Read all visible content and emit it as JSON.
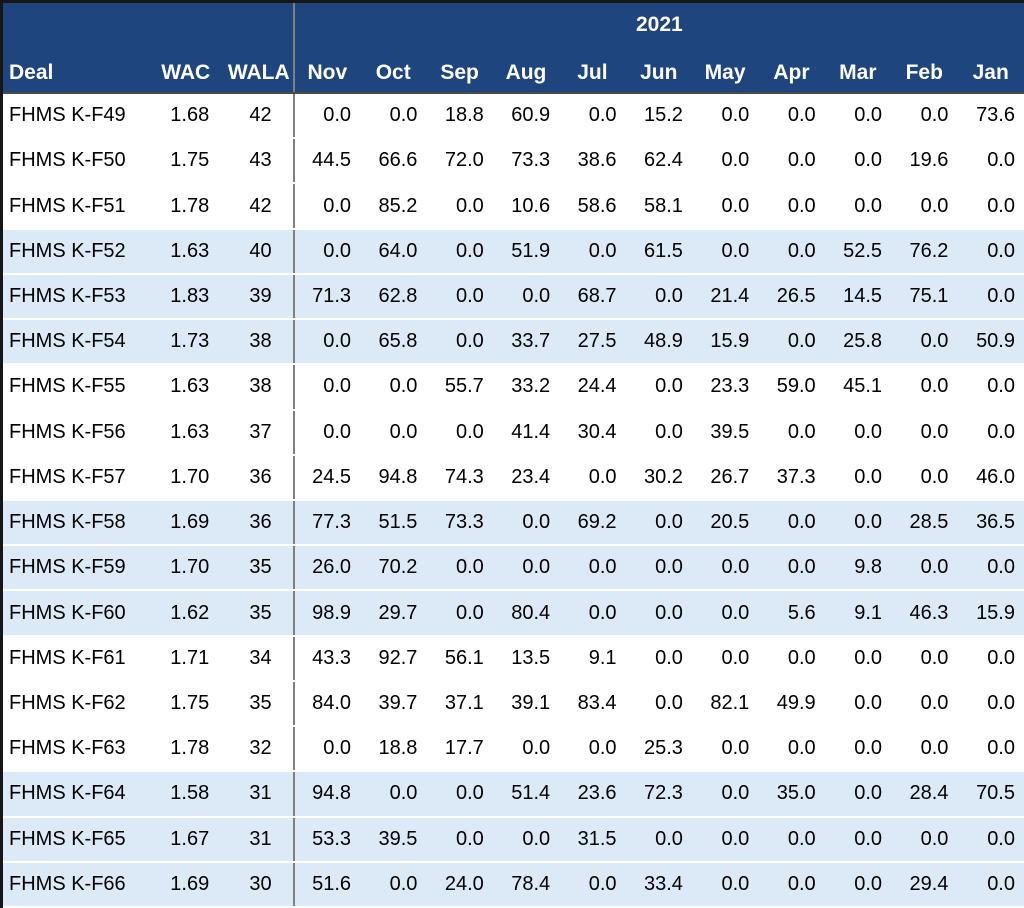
{
  "header": {
    "deal": "Deal",
    "wac": "WAC",
    "wala": "WALA",
    "year": "2021"
  },
  "chart_data": {
    "type": "table",
    "title": "2021",
    "group_header": "2021",
    "columns": [
      "Deal",
      "WAC",
      "WALA",
      "Nov",
      "Oct",
      "Sep",
      "Aug",
      "Jul",
      "Jun",
      "May",
      "Apr",
      "Mar",
      "Feb",
      "Jan"
    ],
    "months": [
      "Nov",
      "Oct",
      "Sep",
      "Aug",
      "Jul",
      "Jun",
      "May",
      "Apr",
      "Mar",
      "Feb",
      "Jan"
    ],
    "layout": {
      "banding": "rows alternate in groups of 3: white / light blue",
      "month_order": "reverse chronological Nov to Jan"
    },
    "rows": [
      {
        "deal": "FHMS K-F49",
        "wac": 1.68,
        "wala": 42,
        "monthly": [
          0.0,
          0.0,
          18.8,
          60.9,
          0.0,
          15.2,
          0.0,
          0.0,
          0.0,
          0.0,
          73.6
        ]
      },
      {
        "deal": "FHMS K-F50",
        "wac": 1.75,
        "wala": 43,
        "monthly": [
          44.5,
          66.6,
          72.0,
          73.3,
          38.6,
          62.4,
          0.0,
          0.0,
          0.0,
          19.6,
          0.0
        ]
      },
      {
        "deal": "FHMS K-F51",
        "wac": 1.78,
        "wala": 42,
        "monthly": [
          0.0,
          85.2,
          0.0,
          10.6,
          58.6,
          58.1,
          0.0,
          0.0,
          0.0,
          0.0,
          0.0
        ]
      },
      {
        "deal": "FHMS K-F52",
        "wac": 1.63,
        "wala": 40,
        "monthly": [
          0.0,
          64.0,
          0.0,
          51.9,
          0.0,
          61.5,
          0.0,
          0.0,
          52.5,
          76.2,
          0.0
        ]
      },
      {
        "deal": "FHMS K-F53",
        "wac": 1.83,
        "wala": 39,
        "monthly": [
          71.3,
          62.8,
          0.0,
          0.0,
          68.7,
          0.0,
          21.4,
          26.5,
          14.5,
          75.1,
          0.0
        ]
      },
      {
        "deal": "FHMS K-F54",
        "wac": 1.73,
        "wala": 38,
        "monthly": [
          0.0,
          65.8,
          0.0,
          33.7,
          27.5,
          48.9,
          15.9,
          0.0,
          25.8,
          0.0,
          50.9
        ]
      },
      {
        "deal": "FHMS K-F55",
        "wac": 1.63,
        "wala": 38,
        "monthly": [
          0.0,
          0.0,
          55.7,
          33.2,
          24.4,
          0.0,
          23.3,
          59.0,
          45.1,
          0.0,
          0.0
        ]
      },
      {
        "deal": "FHMS K-F56",
        "wac": 1.63,
        "wala": 37,
        "monthly": [
          0.0,
          0.0,
          0.0,
          41.4,
          30.4,
          0.0,
          39.5,
          0.0,
          0.0,
          0.0,
          0.0
        ]
      },
      {
        "deal": "FHMS K-F57",
        "wac": 1.7,
        "wala": 36,
        "monthly": [
          24.5,
          94.8,
          74.3,
          23.4,
          0.0,
          30.2,
          26.7,
          37.3,
          0.0,
          0.0,
          46.0
        ]
      },
      {
        "deal": "FHMS K-F58",
        "wac": 1.69,
        "wala": 36,
        "monthly": [
          77.3,
          51.5,
          73.3,
          0.0,
          69.2,
          0.0,
          20.5,
          0.0,
          0.0,
          28.5,
          36.5
        ]
      },
      {
        "deal": "FHMS K-F59",
        "wac": 1.7,
        "wala": 35,
        "monthly": [
          26.0,
          70.2,
          0.0,
          0.0,
          0.0,
          0.0,
          0.0,
          0.0,
          9.8,
          0.0,
          0.0
        ]
      },
      {
        "deal": "FHMS K-F60",
        "wac": 1.62,
        "wala": 35,
        "monthly": [
          98.9,
          29.7,
          0.0,
          80.4,
          0.0,
          0.0,
          0.0,
          5.6,
          9.1,
          46.3,
          15.9
        ]
      },
      {
        "deal": "FHMS K-F61",
        "wac": 1.71,
        "wala": 34,
        "monthly": [
          43.3,
          92.7,
          56.1,
          13.5,
          9.1,
          0.0,
          0.0,
          0.0,
          0.0,
          0.0,
          0.0
        ]
      },
      {
        "deal": "FHMS K-F62",
        "wac": 1.75,
        "wala": 35,
        "monthly": [
          84.0,
          39.7,
          37.1,
          39.1,
          83.4,
          0.0,
          82.1,
          49.9,
          0.0,
          0.0,
          0.0
        ]
      },
      {
        "deal": "FHMS K-F63",
        "wac": 1.78,
        "wala": 32,
        "monthly": [
          0.0,
          18.8,
          17.7,
          0.0,
          0.0,
          25.3,
          0.0,
          0.0,
          0.0,
          0.0,
          0.0
        ]
      },
      {
        "deal": "FHMS K-F64",
        "wac": 1.58,
        "wala": 31,
        "monthly": [
          94.8,
          0.0,
          0.0,
          51.4,
          23.6,
          72.3,
          0.0,
          35.0,
          0.0,
          28.4,
          70.5
        ]
      },
      {
        "deal": "FHMS K-F65",
        "wac": 1.67,
        "wala": 31,
        "monthly": [
          53.3,
          39.5,
          0.0,
          0.0,
          31.5,
          0.0,
          0.0,
          0.0,
          0.0,
          0.0,
          0.0
        ]
      },
      {
        "deal": "FHMS K-F66",
        "wac": 1.69,
        "wala": 30,
        "monthly": [
          51.6,
          0.0,
          24.0,
          78.4,
          0.0,
          33.4,
          0.0,
          0.0,
          0.0,
          29.4,
          0.0
        ]
      }
    ]
  },
  "colors": {
    "header_blue": "#1F457E",
    "year_green": "#77933C",
    "year_text": "#FCFCE9",
    "header_text": "#FFFFFF",
    "band_light_blue": "#DCEAF7",
    "row_white": "#FFFFFF",
    "separator_gray": "#7F7F7F",
    "outer_border_black": "#161616",
    "cell_text": "#000000"
  }
}
